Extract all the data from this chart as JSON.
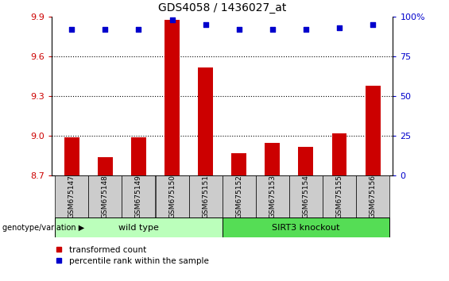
{
  "title": "GDS4058 / 1436027_at",
  "samples": [
    "GSM675147",
    "GSM675148",
    "GSM675149",
    "GSM675150",
    "GSM675151",
    "GSM675152",
    "GSM675153",
    "GSM675154",
    "GSM675155",
    "GSM675156"
  ],
  "transformed_count": [
    8.99,
    8.84,
    8.99,
    9.88,
    9.52,
    8.87,
    8.95,
    8.92,
    9.02,
    9.38
  ],
  "percentile_rank": [
    92,
    92,
    92,
    98,
    95,
    92,
    92,
    92,
    93,
    95
  ],
  "ylim_left": [
    8.7,
    9.9
  ],
  "ylim_right": [
    0,
    100
  ],
  "yticks_left": [
    8.7,
    9.0,
    9.3,
    9.6,
    9.9
  ],
  "yticks_right": [
    0,
    25,
    50,
    75,
    100
  ],
  "bar_color": "#cc0000",
  "dot_color": "#0000cc",
  "wild_type_indices": [
    0,
    1,
    2,
    3,
    4
  ],
  "knockout_indices": [
    5,
    6,
    7,
    8,
    9
  ],
  "wild_type_label": "wild type",
  "knockout_label": "SIRT3 knockout",
  "group_label": "genotype/variation",
  "legend_bar_label": "transformed count",
  "legend_dot_label": "percentile rank within the sample",
  "tick_bg_color": "#cccccc",
  "wt_bg_color": "#bbffbb",
  "ko_bg_color": "#55dd55",
  "title_fontsize": 10,
  "axis_fontsize": 8,
  "bar_width": 0.45
}
